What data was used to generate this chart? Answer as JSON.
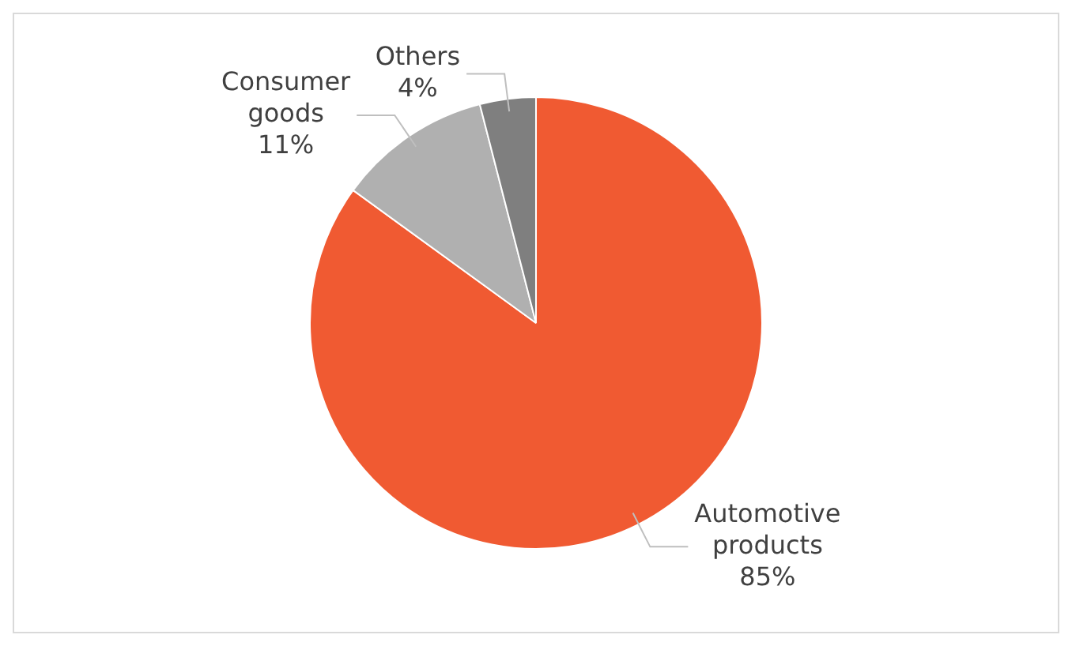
{
  "chart_data": {
    "type": "pie",
    "categories": [
      "Automotive products",
      "Consumer goods",
      "Others"
    ],
    "values": [
      85,
      11,
      4
    ],
    "colors": [
      "#f05a32",
      "#b0b0b0",
      "#7f7f7f"
    ],
    "value_labels": [
      "85%",
      "11%",
      "4%"
    ],
    "legend": false
  }
}
